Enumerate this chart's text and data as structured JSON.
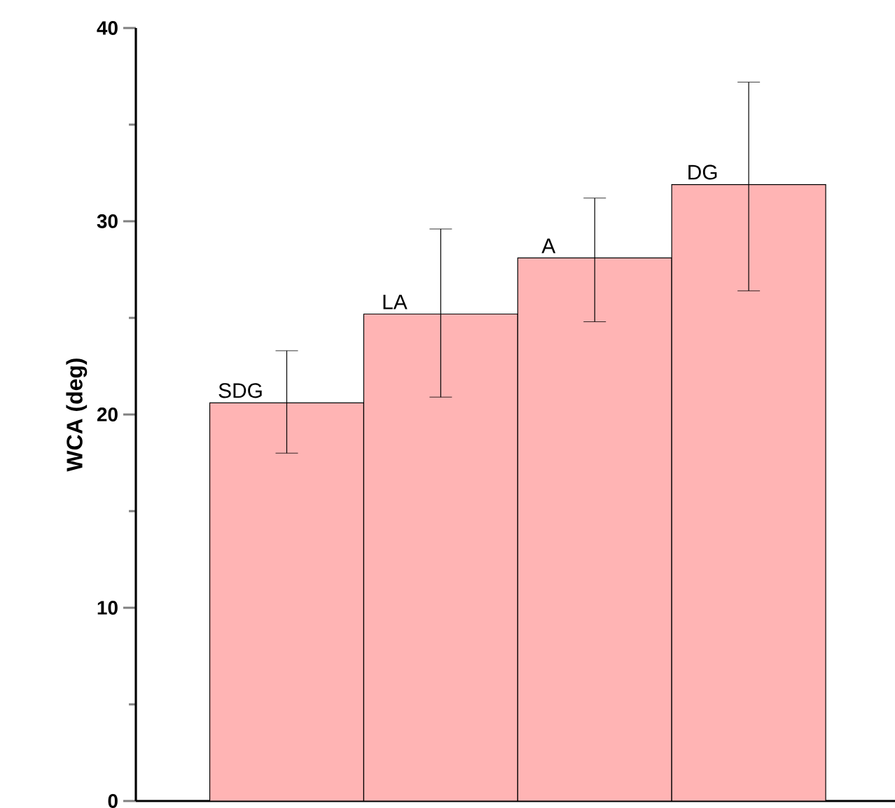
{
  "chart_data": {
    "type": "bar",
    "ylabel": "WCA (deg)",
    "categories": [
      "SDG",
      "LA",
      "A",
      "DG"
    ],
    "values": [
      20.6,
      25.2,
      28.1,
      31.9
    ],
    "errors": [
      [
        18.0,
        23.3
      ],
      [
        20.9,
        29.6
      ],
      [
        24.8,
        31.2
      ],
      [
        26.4,
        37.2
      ]
    ],
    "color": "#ffb4b4",
    "ylim": [
      0,
      40
    ],
    "yticks": [
      0,
      10,
      20,
      30,
      40
    ],
    "tick_labels": "y",
    "grid": false
  }
}
